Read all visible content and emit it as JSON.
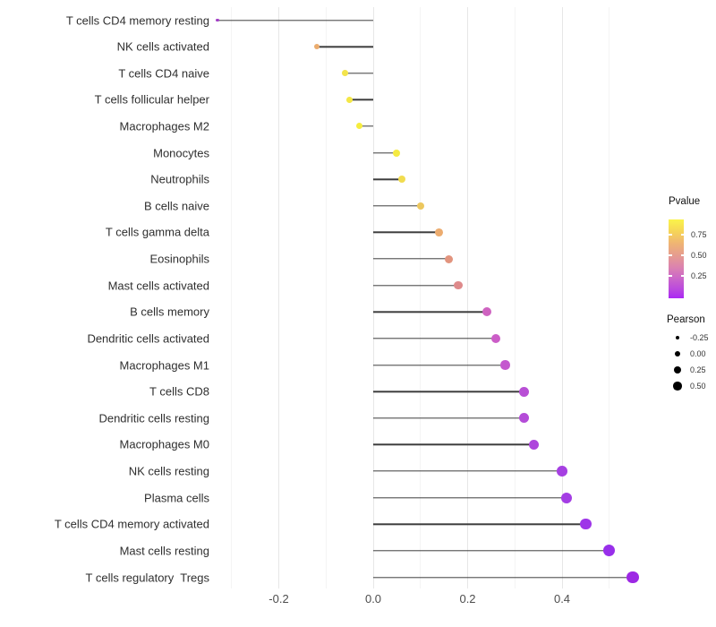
{
  "chart_data": {
    "type": "lollipop",
    "title": "",
    "xlabel": "",
    "ylabel": "",
    "xlim": [
      -0.34,
      0.58
    ],
    "x_tick_labels": [
      "-0.2",
      "0.0",
      "0.2",
      "0.4"
    ],
    "x_tick_values": [
      -0.2,
      0.0,
      0.2,
      0.4
    ],
    "minor_grid_values": [
      -0.3,
      -0.1,
      0.1,
      0.3,
      0.5
    ],
    "grid": "vertical-only",
    "background": "#ffffff",
    "stem_color": "#3d3d3d",
    "categories": [
      "T cells CD4 memory resting",
      "NK cells activated",
      "T cells CD4 naive",
      "T cells follicular helper",
      "Macrophages M2",
      "Monocytes",
      "Neutrophils",
      "B cells naive",
      "T cells gamma delta",
      "Eosinophils",
      "Mast cells activated",
      "B cells memory",
      "Dendritic cells activated",
      "Macrophages M1",
      "T cells CD8",
      "Dendritic cells resting",
      "Macrophages M0",
      "NK cells resting",
      "Plasma cells",
      "T cells CD4 memory activated",
      "Mast cells resting",
      "T cells regulatory  Tregs"
    ],
    "series": [
      {
        "name": "Pearson",
        "values": [
          -0.33,
          -0.12,
          -0.06,
          -0.05,
          -0.03,
          0.05,
          0.06,
          0.1,
          0.14,
          0.16,
          0.18,
          0.24,
          0.26,
          0.28,
          0.32,
          0.32,
          0.34,
          0.4,
          0.41,
          0.45,
          0.5,
          0.55
        ]
      }
    ],
    "point_colors": [
      "#a33fc6",
      "#ebac6e",
      "#f3e44c",
      "#f4e746",
      "#f6ed3e",
      "#f5ea42",
      "#f1dc4f",
      "#ecc75e",
      "#ecac6f",
      "#e2947e",
      "#de8a8b",
      "#ce63c0",
      "#cb5dc7",
      "#c457ce",
      "#b84fd5",
      "#b44cd8",
      "#ae45dc",
      "#a640e2",
      "#a43de4",
      "#9e35e8",
      "#982fea",
      "#9d28e4"
    ],
    "legends": {
      "color": {
        "title": "Pvalue",
        "tick_labels": [
          "0.75",
          "0.50",
          "0.25"
        ],
        "gradient_top": "#faf44a",
        "gradient_mid": "#e69d8e",
        "gradient_bottom": "#ab28f4"
      },
      "size": {
        "title": "Pearson",
        "entries": [
          {
            "label": "-0.25"
          },
          {
            "label": "0.00"
          },
          {
            "label": "0.25"
          },
          {
            "label": "0.50"
          }
        ]
      }
    }
  }
}
